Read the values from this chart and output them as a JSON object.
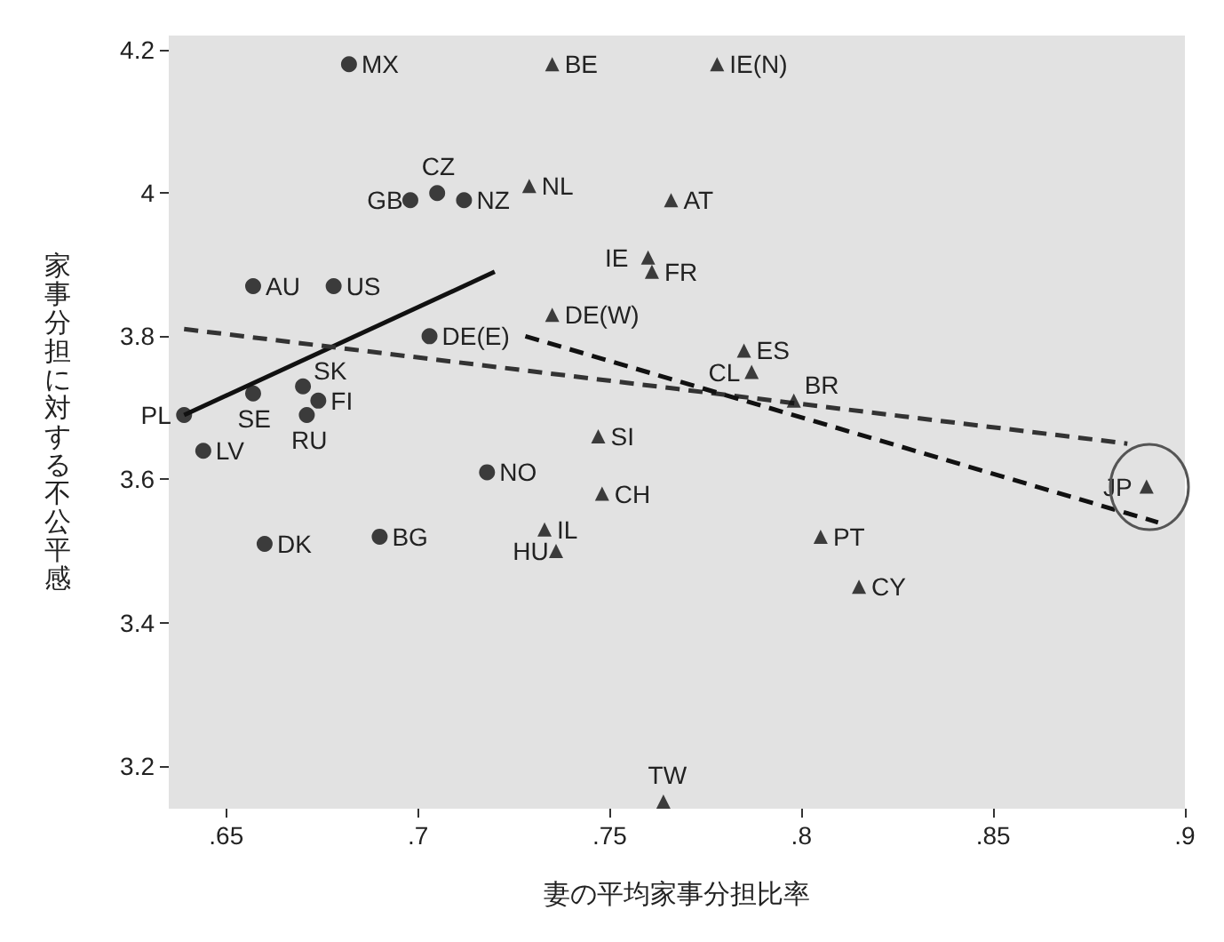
{
  "chart_data": {
    "type": "scatter",
    "xlabel": "妻の平均家事分担比率",
    "ylabel": "家事分担に対する不公平感",
    "xlim": [
      0.635,
      0.9
    ],
    "ylim": [
      3.14,
      4.22
    ],
    "xticks": [
      {
        "value": 0.65,
        "label": ".65"
      },
      {
        "value": 0.7,
        "label": ".7"
      },
      {
        "value": 0.75,
        "label": ".75"
      },
      {
        "value": 0.8,
        "label": ".8"
      },
      {
        "value": 0.85,
        "label": ".85"
      },
      {
        "value": 0.9,
        "label": ".9"
      }
    ],
    "yticks": [
      3.2,
      3.4,
      3.6,
      3.8,
      4,
      4.2
    ],
    "grid": false,
    "series": [
      {
        "marker": "circle",
        "color": "#111111",
        "x": [
          0.682,
          0.705,
          0.698,
          0.712,
          0.657,
          0.678,
          0.703,
          0.639,
          0.657,
          0.67,
          0.674,
          0.671,
          0.644,
          0.718,
          0.66,
          0.69
        ],
        "values": [
          4.18,
          4.0,
          3.99,
          3.99,
          3.87,
          3.87,
          3.8,
          3.69,
          3.72,
          3.73,
          3.71,
          3.69,
          3.64,
          3.61,
          3.51,
          3.52
        ]
      },
      {
        "marker": "triangle",
        "color": "#111111",
        "x": [
          0.735,
          0.778,
          0.729,
          0.766,
          0.76,
          0.761,
          0.735,
          0.785,
          0.787,
          0.798,
          0.747,
          0.748,
          0.89,
          0.733,
          0.736,
          0.805,
          0.815,
          0.764
        ],
        "values": [
          4.18,
          4.18,
          4.01,
          3.99,
          3.91,
          3.89,
          3.83,
          3.78,
          3.75,
          3.71,
          3.66,
          3.58,
          3.59,
          3.53,
          3.5,
          3.52,
          3.45,
          3.15
        ]
      },
      {
        "type": "line",
        "marker": "none",
        "line_style": "solid",
        "color": "#111111",
        "x": [
          0.639,
          0.72
        ],
        "values": [
          3.69,
          3.89
        ]
      },
      {
        "type": "line",
        "marker": "none",
        "line_style": "dashed",
        "color": "#333333",
        "x": [
          0.639,
          0.885
        ],
        "values": [
          3.81,
          3.65
        ]
      },
      {
        "type": "line",
        "marker": "none",
        "line_style": "dashed",
        "color": "#111111",
        "x": [
          0.728,
          0.893
        ],
        "values": [
          3.8,
          3.54
        ]
      }
    ],
    "annotations": [
      {
        "text": "MX",
        "x": 0.682,
        "y": 4.18
      },
      {
        "text": "CZ",
        "x": 0.705,
        "y": 4.0
      },
      {
        "text": "GB",
        "x": 0.698,
        "y": 3.99
      },
      {
        "text": "NZ",
        "x": 0.712,
        "y": 3.99
      },
      {
        "text": "AU",
        "x": 0.657,
        "y": 3.87
      },
      {
        "text": "US",
        "x": 0.678,
        "y": 3.87
      },
      {
        "text": "DE(E)",
        "x": 0.703,
        "y": 3.8
      },
      {
        "text": "PL",
        "x": 0.639,
        "y": 3.69
      },
      {
        "text": "SE",
        "x": 0.657,
        "y": 3.72
      },
      {
        "text": "SK",
        "x": 0.67,
        "y": 3.73
      },
      {
        "text": "FI",
        "x": 0.674,
        "y": 3.71
      },
      {
        "text": "RU",
        "x": 0.671,
        "y": 3.69
      },
      {
        "text": "LV",
        "x": 0.644,
        "y": 3.64
      },
      {
        "text": "NO",
        "x": 0.718,
        "y": 3.61
      },
      {
        "text": "DK",
        "x": 0.66,
        "y": 3.51
      },
      {
        "text": "BG",
        "x": 0.69,
        "y": 3.52
      },
      {
        "text": "BE",
        "x": 0.735,
        "y": 4.18
      },
      {
        "text": "IE(N)",
        "x": 0.778,
        "y": 4.18
      },
      {
        "text": "NL",
        "x": 0.729,
        "y": 4.01
      },
      {
        "text": "AT",
        "x": 0.766,
        "y": 3.99
      },
      {
        "text": "IE",
        "x": 0.76,
        "y": 3.91
      },
      {
        "text": "FR",
        "x": 0.761,
        "y": 3.89
      },
      {
        "text": "DE(W)",
        "x": 0.735,
        "y": 3.83
      },
      {
        "text": "ES",
        "x": 0.785,
        "y": 3.78
      },
      {
        "text": "CL",
        "x": 0.787,
        "y": 3.75
      },
      {
        "text": "BR",
        "x": 0.798,
        "y": 3.71
      },
      {
        "text": "SI",
        "x": 0.747,
        "y": 3.66
      },
      {
        "text": "CH",
        "x": 0.748,
        "y": 3.58
      },
      {
        "text": "JP",
        "x": 0.89,
        "y": 3.59
      },
      {
        "text": "IL",
        "x": 0.733,
        "y": 3.53
      },
      {
        "text": "HU",
        "x": 0.736,
        "y": 3.5
      },
      {
        "text": "PT",
        "x": 0.805,
        "y": 3.52
      },
      {
        "text": "CY",
        "x": 0.815,
        "y": 3.45
      },
      {
        "text": "TW",
        "x": 0.764,
        "y": 3.15
      }
    ]
  }
}
